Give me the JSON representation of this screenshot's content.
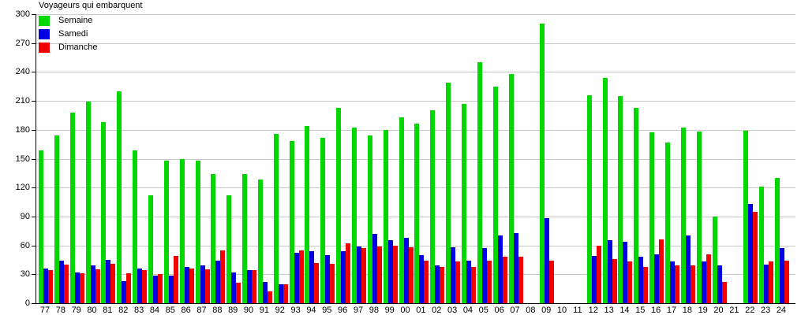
{
  "title": "Voyageurs qui embarquent",
  "colors": {
    "background": "#FFFFFF",
    "grid": "#C8C8C8",
    "axis": "#000000",
    "text": "#000000",
    "semaine": "#00D800",
    "samedi": "#0000E0",
    "dimanche": "#F00000"
  },
  "y_axis": {
    "min": 0,
    "max": 300,
    "step": 30
  },
  "chart_data": {
    "type": "bar",
    "title": "Voyageurs qui embarquent",
    "xlabel": "",
    "ylabel": "",
    "ylim": [
      0,
      300
    ],
    "grid": true,
    "legend_position": "top-left",
    "categories": [
      "77",
      "78",
      "79",
      "80",
      "81",
      "82",
      "83",
      "84",
      "85",
      "86",
      "87",
      "88",
      "89",
      "90",
      "91",
      "92",
      "93",
      "94",
      "95",
      "96",
      "97",
      "98",
      "99",
      "00",
      "01",
      "02",
      "03",
      "04",
      "05",
      "06",
      "07",
      "08",
      "09",
      "10",
      "11",
      "12",
      "13",
      "14",
      "15",
      "16",
      "17",
      "18",
      "19",
      "20",
      "21",
      "22",
      "23",
      "24"
    ],
    "series": [
      {
        "name": "Semaine",
        "color": "#00D800",
        "values": [
          159,
          174,
          198,
          209,
          188,
          220,
          159,
          112,
          148,
          150,
          148,
          134,
          112,
          134,
          128,
          176,
          168,
          184,
          172,
          203,
          182,
          174,
          180,
          193,
          186,
          200,
          229,
          207,
          250,
          225,
          238,
          null,
          290,
          null,
          null,
          216,
          234,
          215,
          203,
          177,
          167,
          182,
          178,
          90,
          null,
          179,
          121,
          130
        ]
      },
      {
        "name": "Samedi",
        "color": "#0000E0",
        "values": [
          36,
          44,
          32,
          39,
          45,
          23,
          36,
          29,
          29,
          38,
          39,
          44,
          32,
          34,
          22,
          20,
          52,
          54,
          50,
          54,
          59,
          72,
          65,
          68,
          50,
          39,
          58,
          44,
          57,
          70,
          73,
          null,
          88,
          null,
          null,
          49,
          65,
          64,
          48,
          51,
          43,
          70,
          43,
          39,
          null,
          103,
          40,
          57
        ]
      },
      {
        "name": "Dimanche",
        "color": "#F00000",
        "values": [
          34,
          40,
          31,
          35,
          41,
          31,
          34,
          30,
          49,
          36,
          35,
          55,
          21,
          34,
          12,
          20,
          55,
          42,
          41,
          62,
          57,
          59,
          60,
          58,
          44,
          38,
          43,
          38,
          44,
          48,
          48,
          null,
          44,
          null,
          null,
          60,
          46,
          43,
          38,
          66,
          39,
          39,
          51,
          22,
          null,
          95,
          43,
          44
        ]
      }
    ]
  }
}
